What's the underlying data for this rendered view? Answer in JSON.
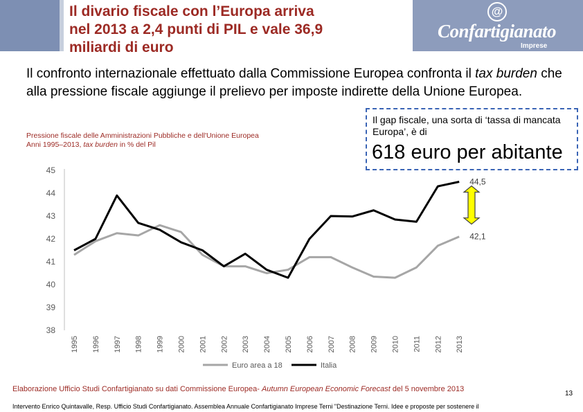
{
  "header": {
    "title_lines": [
      "Il divario fiscale con l’Europa arriva",
      "nel 2013 a 2,4 punti di PIL e vale 36,9",
      "miliardi di euro"
    ],
    "logo_symbol": "@",
    "logo_name": "Confartigianato",
    "logo_sub": "Imprese"
  },
  "intro": {
    "part1": "Il confronto internazionale effettuato dalla Commissione Europea confronta il ",
    "em": "tax burden",
    "part2": " che alla pressione fiscale aggiunge il prelievo per imposte indirette della Unione Europea."
  },
  "chart_title": {
    "line1": "Pressione fiscale delle Amministrazioni Pubbliche e dell'Unione Europea",
    "line2_a": "Anni 1995–2013, ",
    "line2_em": "tax burden",
    "line2_b": " in % del Pil"
  },
  "callout": {
    "text": "Il gap fiscale, una sorta di ‘tassa di mancata Europa’, è di",
    "big": "618 euro per abitante"
  },
  "chart_data": {
    "type": "line",
    "x": [
      "1995",
      "1996",
      "1997",
      "1998",
      "1999",
      "2000",
      "2001",
      "2002",
      "2003",
      "2004",
      "2005",
      "2006",
      "2007",
      "2008",
      "2009",
      "2010",
      "2011",
      "2012",
      "2013"
    ],
    "ylim": [
      38,
      45
    ],
    "yticks": [
      "38",
      "39",
      "40",
      "41",
      "42",
      "43",
      "44",
      "45"
    ],
    "series": [
      {
        "name": "Euro area a 18",
        "color": "#a6a6a6",
        "values": [
          41.3,
          41.9,
          42.25,
          42.15,
          42.6,
          42.3,
          41.3,
          40.8,
          40.8,
          40.5,
          40.65,
          41.2,
          41.2,
          40.75,
          40.35,
          40.3,
          40.75,
          41.7,
          42.1
        ]
      },
      {
        "name": "Italia",
        "color": "#000000",
        "values": [
          41.5,
          42.0,
          43.9,
          42.7,
          42.4,
          41.85,
          41.5,
          40.8,
          41.35,
          40.65,
          40.3,
          42.0,
          43.0,
          42.98,
          43.25,
          42.85,
          42.75,
          44.3,
          44.5
        ]
      }
    ],
    "end_labels": [
      "44,5",
      "42,1"
    ],
    "gap_arrow_color": "#ffff00",
    "grid": false,
    "legend": "bottom"
  },
  "footer": {
    "source_a": "Elaborazione Ufficio Studi Confartigianato su dati Commissione Europea- ",
    "source_em": "Autumn  European Economic Forecast",
    "source_b": " del 5 novembre 2013",
    "page_number": "13",
    "event": "Intervento Enrico Quintavalle, Resp. Ufficio Studi Confartigianato. Assemblea Annuale Confartigianato Imprese Terni \"Destinazione Terni. Idee e proposte per sostenere il"
  }
}
